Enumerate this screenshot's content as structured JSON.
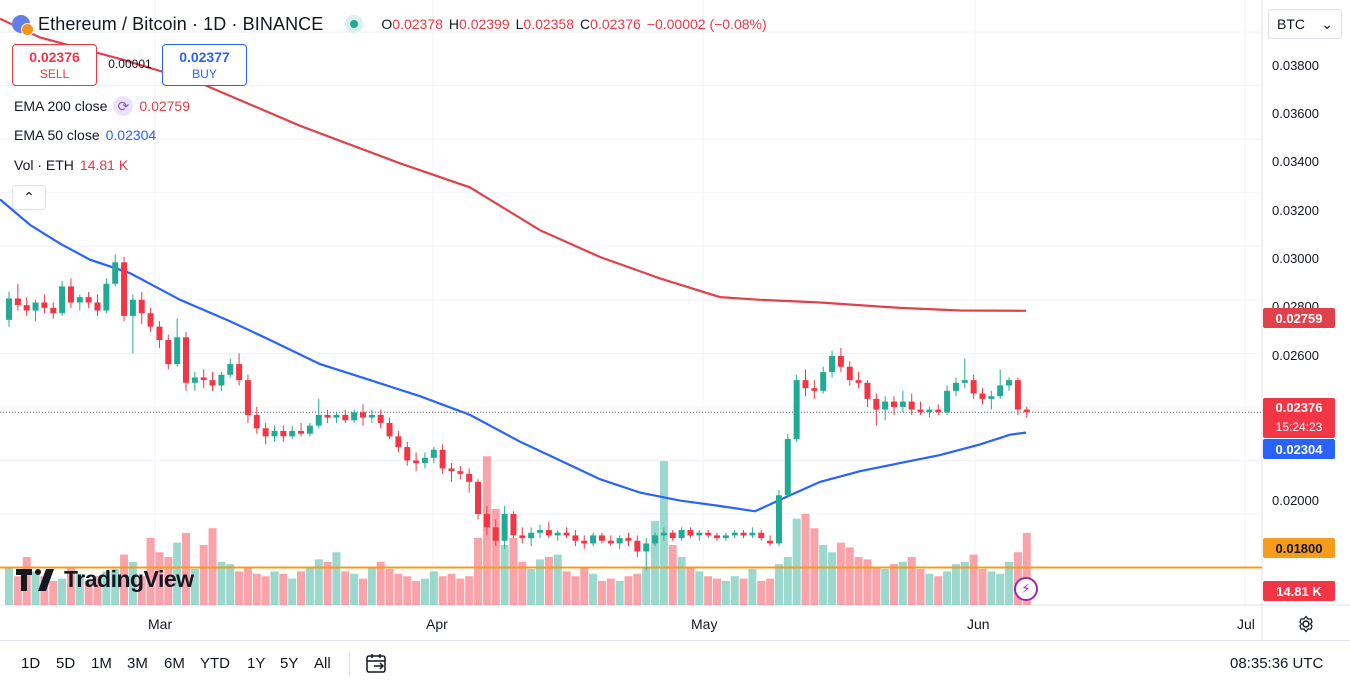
{
  "header": {
    "title": "Ethereum / Bitcoin · 1D · BINANCE",
    "ohlc": [
      {
        "k": "O",
        "v": "0.02378"
      },
      {
        "k": "H",
        "v": "0.02399"
      },
      {
        "k": "L",
        "v": "0.02358"
      },
      {
        "k": "C",
        "v": "0.02376"
      }
    ],
    "change": "−0.00002 (−0.08%)"
  },
  "currency_select": {
    "value": "BTC"
  },
  "trade": {
    "sell_price": "0.02376",
    "sell_label": "SELL",
    "buy_price": "0.02377",
    "buy_label": "BUY",
    "spread": "0.00001"
  },
  "indicators": {
    "ema200": {
      "name": "EMA 200 close",
      "value": "0.02759",
      "color": "#e0414b"
    },
    "ema50": {
      "name": "EMA 50 close",
      "value": "0.02304",
      "color": "#2962ff"
    },
    "vol": {
      "name": "Vol · ETH",
      "value": "14.81 K"
    }
  },
  "price_axis": {
    "ticks": [
      "0.03800",
      "0.03600",
      "0.03400",
      "0.03200",
      "0.03000",
      "0.02800",
      "0.02600",
      "0.02000"
    ],
    "tags": {
      "ema200": "0.02759",
      "last_price": "0.02376",
      "countdown": "15:24:23",
      "ema50": "0.02304",
      "hline": "0.01800",
      "volume": "14.81 K"
    }
  },
  "time_axis": {
    "labels": [
      "Mar",
      "Apr",
      "May",
      "Jun",
      "Jul"
    ]
  },
  "bottom_bar": {
    "ranges": [
      "1D",
      "5D",
      "1M",
      "3M",
      "6M",
      "YTD",
      "1Y",
      "5Y",
      "All"
    ],
    "clock": "08:35:36 UTC"
  },
  "logo": {
    "text": "TradingView"
  },
  "colors": {
    "up": "#22ab94",
    "down": "#f23645",
    "hline": "#f59c1a",
    "ema200": "#e0414b",
    "ema50": "#2962ff"
  },
  "chart_data": {
    "type": "candlestick",
    "interval": "1D",
    "y_axis": {
      "min": 0.0166,
      "max": 0.0392
    },
    "hline": 0.018,
    "x_labels": [
      "Mar",
      "Apr",
      "May",
      "Jun",
      "Jul"
    ],
    "candles": [
      [
        0.02725,
        0.0283,
        0.027,
        0.02805
      ],
      [
        0.02805,
        0.0286,
        0.0276,
        0.0278
      ],
      [
        0.0278,
        0.0281,
        0.0274,
        0.0276
      ],
      [
        0.0276,
        0.028,
        0.0272,
        0.0279
      ],
      [
        0.0279,
        0.0282,
        0.0275,
        0.0277
      ],
      [
        0.0277,
        0.0279,
        0.0273,
        0.0275
      ],
      [
        0.0275,
        0.0287,
        0.0274,
        0.0285
      ],
      [
        0.0285,
        0.0288,
        0.0277,
        0.0279
      ],
      [
        0.0279,
        0.0282,
        0.0276,
        0.0281
      ],
      [
        0.0281,
        0.0283,
        0.0277,
        0.0279
      ],
      [
        0.0279,
        0.0282,
        0.0274,
        0.0276
      ],
      [
        0.0276,
        0.0288,
        0.0275,
        0.0286
      ],
      [
        0.0286,
        0.0297,
        0.0285,
        0.0294
      ],
      [
        0.0294,
        0.0296,
        0.0272,
        0.0274
      ],
      [
        0.0274,
        0.0282,
        0.026,
        0.028
      ],
      [
        0.028,
        0.0283,
        0.0271,
        0.0275
      ],
      [
        0.0275,
        0.0277,
        0.0268,
        0.027
      ],
      [
        0.027,
        0.0272,
        0.0262,
        0.0265
      ],
      [
        0.0265,
        0.0267,
        0.0254,
        0.0256
      ],
      [
        0.0256,
        0.0273,
        0.0255,
        0.0266
      ],
      [
        0.0266,
        0.0268,
        0.0246,
        0.0249
      ],
      [
        0.0249,
        0.0253,
        0.0246,
        0.0251
      ],
      [
        0.0251,
        0.0254,
        0.0247,
        0.025
      ],
      [
        0.025,
        0.0253,
        0.0246,
        0.0248
      ],
      [
        0.0248,
        0.0253,
        0.0246,
        0.0252
      ],
      [
        0.0252,
        0.0258,
        0.0251,
        0.0256
      ],
      [
        0.0256,
        0.026,
        0.0248,
        0.025
      ],
      [
        0.025,
        0.0252,
        0.0234,
        0.0237
      ],
      [
        0.0237,
        0.024,
        0.023,
        0.0232
      ],
      [
        0.0232,
        0.0234,
        0.0226,
        0.0229
      ],
      [
        0.0229,
        0.0233,
        0.0227,
        0.0231
      ],
      [
        0.0231,
        0.0233,
        0.0227,
        0.0229
      ],
      [
        0.0229,
        0.0233,
        0.0228,
        0.0231
      ],
      [
        0.0231,
        0.0234,
        0.0229,
        0.023
      ],
      [
        0.023,
        0.0234,
        0.0229,
        0.0233
      ],
      [
        0.0233,
        0.0243,
        0.0232,
        0.0237
      ],
      [
        0.0237,
        0.0239,
        0.0234,
        0.0236
      ],
      [
        0.0236,
        0.0238,
        0.0234,
        0.0237
      ],
      [
        0.0237,
        0.0239,
        0.0234,
        0.0235
      ],
      [
        0.0235,
        0.0239,
        0.0234,
        0.0238
      ],
      [
        0.0238,
        0.0241,
        0.0233,
        0.0236
      ],
      [
        0.0236,
        0.0239,
        0.0234,
        0.0237
      ],
      [
        0.0237,
        0.0239,
        0.0232,
        0.0234
      ],
      [
        0.0234,
        0.0236,
        0.0228,
        0.0229
      ],
      [
        0.0229,
        0.0231,
        0.0223,
        0.0225
      ],
      [
        0.0225,
        0.0227,
        0.0218,
        0.022
      ],
      [
        0.022,
        0.0223,
        0.0216,
        0.0219
      ],
      [
        0.0219,
        0.0223,
        0.0217,
        0.0221
      ],
      [
        0.0221,
        0.0225,
        0.0219,
        0.0224
      ],
      [
        0.0224,
        0.0226,
        0.0215,
        0.0217
      ],
      [
        0.0217,
        0.0219,
        0.0212,
        0.0216
      ],
      [
        0.0216,
        0.0218,
        0.0213,
        0.0215
      ],
      [
        0.0215,
        0.0217,
        0.0208,
        0.0212
      ],
      [
        0.0212,
        0.0213,
        0.0198,
        0.02
      ],
      [
        0.02,
        0.0203,
        0.0192,
        0.0195
      ],
      [
        0.0195,
        0.0198,
        0.0188,
        0.019
      ],
      [
        0.019,
        0.0203,
        0.0187,
        0.02
      ],
      [
        0.02,
        0.0201,
        0.0191,
        0.0192
      ],
      [
        0.0192,
        0.0195,
        0.0189,
        0.0191
      ],
      [
        0.0191,
        0.0195,
        0.0188,
        0.0193
      ],
      [
        0.0193,
        0.0196,
        0.0191,
        0.0194
      ],
      [
        0.0194,
        0.0197,
        0.0191,
        0.0192
      ],
      [
        0.0192,
        0.0194,
        0.019,
        0.0193
      ],
      [
        0.0193,
        0.0195,
        0.0191,
        0.0192
      ],
      [
        0.0192,
        0.0194,
        0.0188,
        0.019
      ],
      [
        0.019,
        0.0192,
        0.0187,
        0.0189
      ],
      [
        0.0189,
        0.0193,
        0.0188,
        0.0192
      ],
      [
        0.0192,
        0.0193,
        0.0189,
        0.019
      ],
      [
        0.019,
        0.0192,
        0.0188,
        0.0189
      ],
      [
        0.0189,
        0.0192,
        0.0187,
        0.0191
      ],
      [
        0.0191,
        0.0193,
        0.0188,
        0.019
      ],
      [
        0.019,
        0.0192,
        0.0184,
        0.0186
      ],
      [
        0.0186,
        0.0191,
        0.0179,
        0.0189
      ],
      [
        0.0189,
        0.0193,
        0.0188,
        0.0192
      ],
      [
        0.0192,
        0.0195,
        0.019,
        0.0193
      ],
      [
        0.0193,
        0.0194,
        0.019,
        0.0191
      ],
      [
        0.0191,
        0.0195,
        0.019,
        0.0194
      ],
      [
        0.0194,
        0.0195,
        0.0191,
        0.0192
      ],
      [
        0.0192,
        0.0194,
        0.019,
        0.0193
      ],
      [
        0.0193,
        0.0194,
        0.0191,
        0.0192
      ],
      [
        0.0192,
        0.0193,
        0.019,
        0.0191
      ],
      [
        0.0191,
        0.0193,
        0.019,
        0.0192
      ],
      [
        0.0192,
        0.0194,
        0.0191,
        0.0193
      ],
      [
        0.0193,
        0.0194,
        0.0191,
        0.0192
      ],
      [
        0.0192,
        0.0195,
        0.0191,
        0.0193
      ],
      [
        0.0193,
        0.0194,
        0.019,
        0.0191
      ],
      [
        0.019,
        0.0192,
        0.0188,
        0.0189
      ],
      [
        0.0189,
        0.0209,
        0.0188,
        0.0207
      ],
      [
        0.0207,
        0.023,
        0.0206,
        0.0228
      ],
      [
        0.0228,
        0.0252,
        0.0227,
        0.025
      ],
      [
        0.025,
        0.0254,
        0.0244,
        0.0247
      ],
      [
        0.0247,
        0.025,
        0.0243,
        0.0246
      ],
      [
        0.0246,
        0.0255,
        0.0245,
        0.0253
      ],
      [
        0.0253,
        0.0261,
        0.0251,
        0.0259
      ],
      [
        0.0259,
        0.0262,
        0.0253,
        0.0255
      ],
      [
        0.0255,
        0.0257,
        0.0248,
        0.025
      ],
      [
        0.025,
        0.0253,
        0.0247,
        0.0249
      ],
      [
        0.0249,
        0.025,
        0.024,
        0.0243
      ],
      [
        0.0243,
        0.0245,
        0.0233,
        0.0239
      ],
      [
        0.0239,
        0.0244,
        0.0235,
        0.0242
      ],
      [
        0.0242,
        0.0244,
        0.0237,
        0.024
      ],
      [
        0.024,
        0.0246,
        0.0238,
        0.0242
      ],
      [
        0.0242,
        0.0245,
        0.0237,
        0.0239
      ],
      [
        0.0239,
        0.0242,
        0.0237,
        0.0238
      ],
      [
        0.0238,
        0.024,
        0.0236,
        0.0239
      ],
      [
        0.0239,
        0.0241,
        0.0237,
        0.0238
      ],
      [
        0.0238,
        0.0248,
        0.0237,
        0.0246
      ],
      [
        0.0246,
        0.0251,
        0.0244,
        0.0249
      ],
      [
        0.0249,
        0.0258,
        0.0247,
        0.025
      ],
      [
        0.025,
        0.0252,
        0.0243,
        0.0245
      ],
      [
        0.0245,
        0.0247,
        0.0241,
        0.0243
      ],
      [
        0.0243,
        0.0246,
        0.0239,
        0.0244
      ],
      [
        0.0244,
        0.0254,
        0.0243,
        0.0248
      ],
      [
        0.0248,
        0.0251,
        0.0246,
        0.025
      ],
      [
        0.025,
        0.0251,
        0.0237,
        0.0239
      ],
      [
        0.0239,
        0.024,
        0.0236,
        0.0238
      ]
    ],
    "volume": [
      16,
      12,
      20,
      14,
      12,
      10,
      11,
      16,
      13,
      10,
      12,
      14,
      15,
      21,
      18,
      12,
      28,
      22,
      20,
      26,
      30,
      15,
      25,
      32,
      18,
      17,
      14,
      16,
      13,
      12,
      14,
      13,
      11,
      14,
      16,
      19,
      18,
      22,
      14,
      13,
      11,
      16,
      18,
      15,
      13,
      12,
      10,
      11,
      14,
      12,
      13,
      11,
      12,
      28,
      62,
      40,
      25,
      28,
      18,
      15,
      19,
      20,
      21,
      14,
      12,
      16,
      13,
      10,
      11,
      10,
      12,
      13,
      16,
      35,
      60,
      25,
      20,
      16,
      14,
      12,
      11,
      10,
      12,
      11,
      15,
      10,
      11,
      17,
      20,
      36,
      38,
      32,
      25,
      22,
      26,
      24,
      20,
      19,
      16,
      15,
      17,
      18,
      20,
      15,
      13,
      12,
      14,
      17,
      18,
      21,
      15,
      14,
      13,
      18,
      22,
      30,
      8
    ],
    "ema50": [
      [
        0,
        0.03175
      ],
      [
        30,
        0.0308
      ],
      [
        60,
        0.0301
      ],
      [
        90,
        0.0295
      ],
      [
        130,
        0.029
      ],
      [
        180,
        0.028
      ],
      [
        230,
        0.0272
      ],
      [
        270,
        0.0265
      ],
      [
        320,
        0.0256
      ],
      [
        370,
        0.025
      ],
      [
        420,
        0.0244
      ],
      [
        470,
        0.0237
      ],
      [
        520,
        0.0227
      ],
      [
        560,
        0.022
      ],
      [
        600,
        0.0213
      ],
      [
        640,
        0.0208
      ],
      [
        680,
        0.0205
      ],
      [
        720,
        0.0203
      ],
      [
        755,
        0.0201
      ],
      [
        790,
        0.0207
      ],
      [
        820,
        0.0212
      ],
      [
        860,
        0.0216
      ],
      [
        900,
        0.0219
      ],
      [
        940,
        0.0222
      ],
      [
        980,
        0.0226
      ],
      [
        1010,
        0.02296
      ],
      [
        1026,
        0.02304
      ]
    ],
    "ema200": [
      [
        0,
        0.0385
      ],
      [
        40,
        0.0378
      ],
      [
        120,
        0.037
      ],
      [
        200,
        0.0361
      ],
      [
        300,
        0.0345
      ],
      [
        400,
        0.0331
      ],
      [
        470,
        0.0322
      ],
      [
        540,
        0.0306
      ],
      [
        600,
        0.0296
      ],
      [
        660,
        0.0288
      ],
      [
        720,
        0.0281
      ],
      [
        760,
        0.028
      ],
      [
        820,
        0.0279
      ],
      [
        900,
        0.0277
      ],
      [
        960,
        0.0276
      ],
      [
        1026,
        0.02759
      ]
    ]
  }
}
